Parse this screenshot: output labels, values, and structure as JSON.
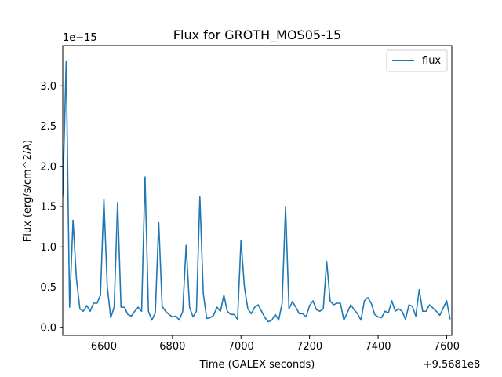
{
  "chart_data": {
    "type": "line",
    "title": "Flux for GROTH_MOS05-15",
    "xlabel": "Time (GALEX seconds)",
    "ylabel": "Flux (erg/s/cm^2/A)",
    "x_offset_label": "+9.5681e8",
    "y_scale_label": "1e−15",
    "xlim": [
      6480,
      7615
    ],
    "ylim": [
      -0.1,
      3.5
    ],
    "xticks": [
      6600,
      6800,
      7000,
      7200,
      7400,
      7600
    ],
    "yticks": [
      0.0,
      0.5,
      1.0,
      1.5,
      2.0,
      2.5,
      3.0
    ],
    "ytick_labels": [
      "0.0",
      "0.5",
      "1.0",
      "1.5",
      "2.0",
      "2.5",
      "3.0"
    ],
    "grid": false,
    "legend": "top-right",
    "series": [
      {
        "name": "flux",
        "color": "#1f77b4",
        "x": [
          6480,
          6490,
          6500,
          6510,
          6520,
          6530,
          6540,
          6550,
          6560,
          6570,
          6580,
          6590,
          6600,
          6610,
          6620,
          6630,
          6640,
          6650,
          6660,
          6670,
          6680,
          6690,
          6700,
          6710,
          6720,
          6730,
          6740,
          6750,
          6760,
          6770,
          6780,
          6790,
          6800,
          6810,
          6820,
          6830,
          6840,
          6850,
          6860,
          6870,
          6880,
          6890,
          6900,
          6910,
          6920,
          6930,
          6940,
          6950,
          6960,
          6970,
          6980,
          6990,
          7000,
          7010,
          7020,
          7030,
          7040,
          7050,
          7060,
          7070,
          7080,
          7090,
          7100,
          7110,
          7120,
          7130,
          7140,
          7150,
          7160,
          7170,
          7180,
          7190,
          7200,
          7210,
          7220,
          7230,
          7240,
          7250,
          7260,
          7270,
          7280,
          7290,
          7300,
          7310,
          7320,
          7330,
          7340,
          7350,
          7360,
          7370,
          7380,
          7390,
          7400,
          7410,
          7420,
          7430,
          7440,
          7450,
          7460,
          7470,
          7480,
          7490,
          7500,
          7510,
          7520,
          7530,
          7540,
          7550,
          7560,
          7570,
          7580,
          7590,
          7600,
          7610
        ],
        "y": [
          1.62,
          3.3,
          0.25,
          1.33,
          0.6,
          0.23,
          0.2,
          0.27,
          0.2,
          0.3,
          0.3,
          0.4,
          1.59,
          0.5,
          0.12,
          0.25,
          1.55,
          0.25,
          0.25,
          0.16,
          0.14,
          0.2,
          0.25,
          0.2,
          1.87,
          0.2,
          0.09,
          0.18,
          1.3,
          0.26,
          0.2,
          0.16,
          0.13,
          0.14,
          0.09,
          0.2,
          1.02,
          0.25,
          0.13,
          0.2,
          1.62,
          0.42,
          0.11,
          0.12,
          0.15,
          0.25,
          0.2,
          0.4,
          0.2,
          0.16,
          0.16,
          0.1,
          1.08,
          0.5,
          0.23,
          0.17,
          0.25,
          0.28,
          0.2,
          0.12,
          0.07,
          0.09,
          0.16,
          0.09,
          0.3,
          1.5,
          0.23,
          0.32,
          0.25,
          0.17,
          0.17,
          0.13,
          0.27,
          0.33,
          0.22,
          0.2,
          0.23,
          0.82,
          0.33,
          0.28,
          0.3,
          0.3,
          0.09,
          0.18,
          0.28,
          0.22,
          0.17,
          0.09,
          0.33,
          0.37,
          0.3,
          0.16,
          0.13,
          0.12,
          0.2,
          0.18,
          0.33,
          0.2,
          0.23,
          0.2,
          0.1,
          0.28,
          0.26,
          0.14,
          0.47,
          0.2,
          0.2,
          0.28,
          0.24,
          0.2,
          0.15,
          0.24,
          0.33,
          0.1
        ]
      }
    ]
  }
}
